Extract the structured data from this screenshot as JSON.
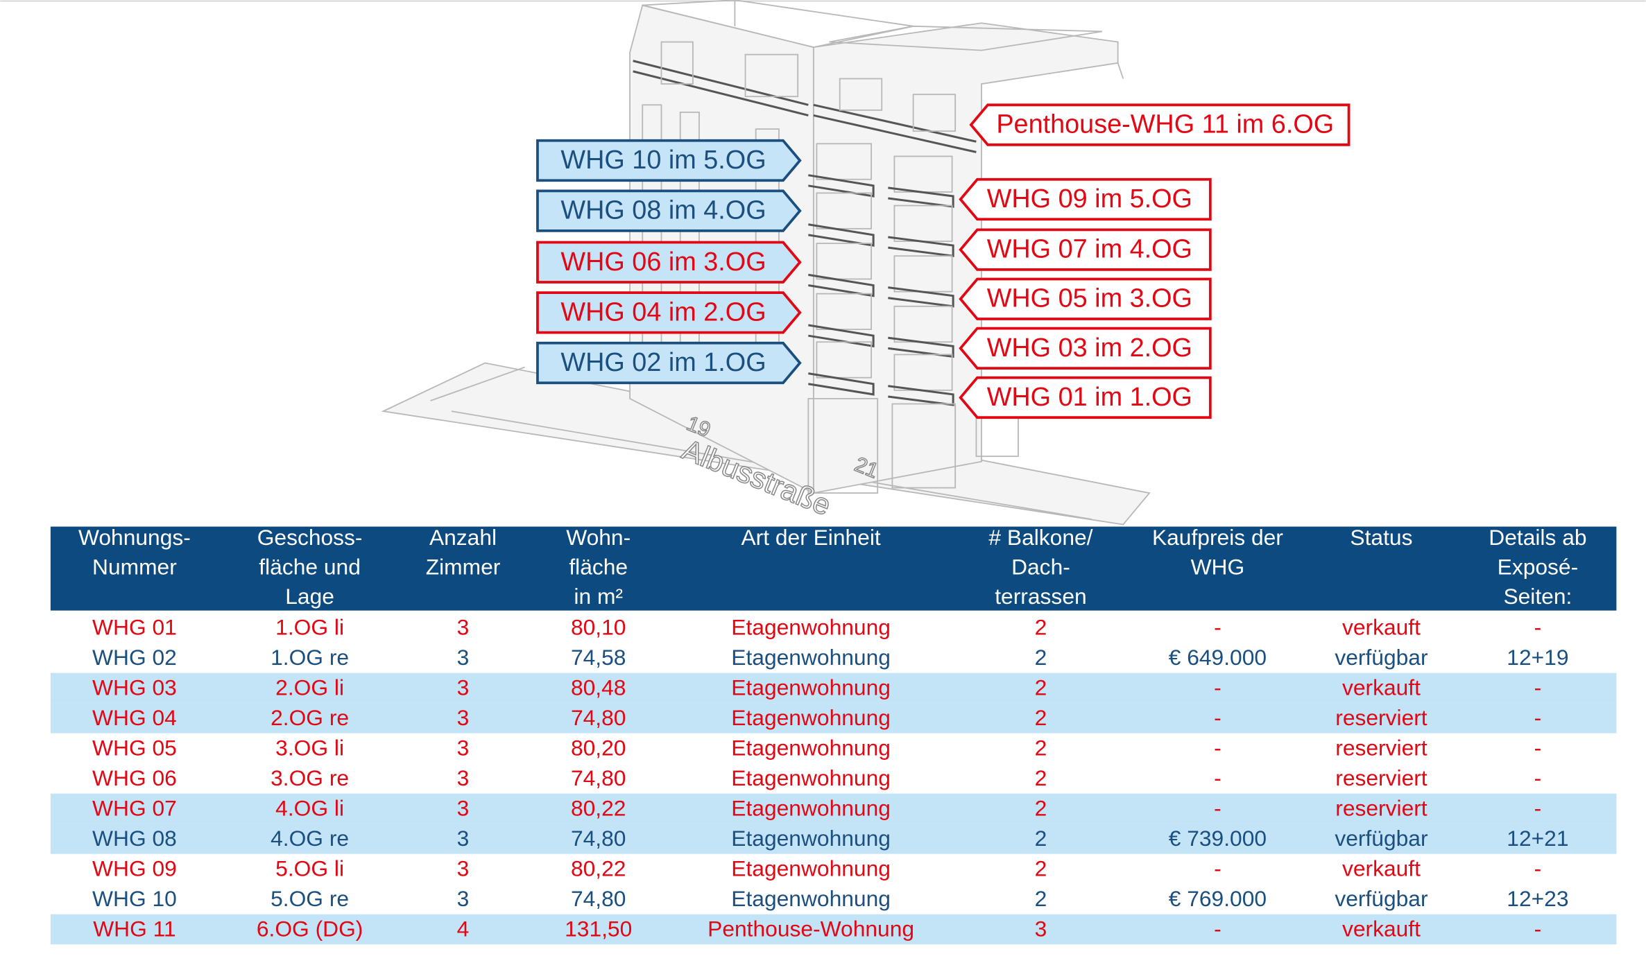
{
  "street": {
    "name": "Albusstraße",
    "numbers": [
      "19",
      "21"
    ]
  },
  "left_callouts": [
    {
      "label": "WHG 10 im 5.OG",
      "color": "#1b4f80",
      "fill": "#c6e4f7"
    },
    {
      "label": "WHG 08 im 4.OG",
      "color": "#1b4f80",
      "fill": "#c6e4f7"
    },
    {
      "label": "WHG 06 im 3.OG",
      "color": "#e30613",
      "fill": "#c6e4f7"
    },
    {
      "label": "WHG 04 im 2.OG",
      "color": "#e30613",
      "fill": "#c6e4f7"
    },
    {
      "label": "WHG 02 im 1.OG",
      "color": "#1b4f80",
      "fill": "#c6e4f7"
    }
  ],
  "penthouse_callout": {
    "label": "Penthouse-WHG 11 im 6.OG",
    "color": "#e30613",
    "fill": "#ffffff"
  },
  "right_callouts": [
    {
      "label": "WHG 09 im 5.OG",
      "color": "#e30613",
      "fill": "#ffffff"
    },
    {
      "label": "WHG 07 im 4.OG",
      "color": "#e30613",
      "fill": "#ffffff"
    },
    {
      "label": "WHG 05 im 3.OG",
      "color": "#e30613",
      "fill": "#ffffff"
    },
    {
      "label": "WHG 03 im 2.OG",
      "color": "#e30613",
      "fill": "#ffffff"
    },
    {
      "label": "WHG 01 im 1.OG",
      "color": "#e30613",
      "fill": "#ffffff"
    }
  ],
  "table": {
    "header": [
      [
        "Wohnungs-",
        "Nummer"
      ],
      [
        "Geschoss-",
        "fläche und",
        "Lage"
      ],
      [
        "Anzahl",
        "Zimmer"
      ],
      [
        "Wohn-",
        "fläche",
        "in m²"
      ],
      [
        "Art der Einheit"
      ],
      [
        "# Balkone/",
        "Dach-",
        "terrassen"
      ],
      [
        "Kaufpreis der",
        "WHG"
      ],
      [
        "Status"
      ],
      [
        "Details ab",
        "Exposé-",
        "Seiten:"
      ]
    ],
    "rows": [
      {
        "cells": [
          "WHG 01",
          "1.OG li",
          "3",
          "80,10",
          "Etagenwohnung",
          "2",
          "-",
          "verkauft",
          "-"
        ],
        "color": "#e30613",
        "shaded": false
      },
      {
        "cells": [
          "WHG 02",
          "1.OG re",
          "3",
          "74,58",
          "Etagenwohnung",
          "2",
          "€ 649.000",
          "verfügbar",
          "12+19"
        ],
        "color": "#1b4f80",
        "shaded": false
      },
      {
        "cells": [
          "WHG 03",
          "2.OG li",
          "3",
          "80,48",
          "Etagenwohnung",
          "2",
          "-",
          "verkauft",
          "-"
        ],
        "color": "#e30613",
        "shaded": true
      },
      {
        "cells": [
          "WHG 04",
          "2.OG re",
          "3",
          "74,80",
          "Etagenwohnung",
          "2",
          "-",
          "reserviert",
          "-"
        ],
        "color": "#e30613",
        "shaded": true
      },
      {
        "cells": [
          "WHG 05",
          "3.OG li",
          "3",
          "80,20",
          "Etagenwohnung",
          "2",
          "-",
          "reserviert",
          "-"
        ],
        "color": "#e30613",
        "shaded": false
      },
      {
        "cells": [
          "WHG 06",
          "3.OG re",
          "3",
          "74,80",
          "Etagenwohnung",
          "2",
          "-",
          "reserviert",
          "-"
        ],
        "color": "#e30613",
        "shaded": false
      },
      {
        "cells": [
          "WHG 07",
          "4.OG li",
          "3",
          "80,22",
          "Etagenwohnung",
          "2",
          "-",
          "reserviert",
          "-"
        ],
        "color": "#e30613",
        "shaded": true
      },
      {
        "cells": [
          "WHG 08",
          "4.OG re",
          "3",
          "74,80",
          "Etagenwohnung",
          "2",
          "€ 739.000",
          "verfügbar",
          "12+21"
        ],
        "color": "#1b4f80",
        "shaded": true
      },
      {
        "cells": [
          "WHG 09",
          "5.OG li",
          "3",
          "80,22",
          "Etagenwohnung",
          "2",
          "-",
          "verkauft",
          "-"
        ],
        "color": "#e30613",
        "shaded": false
      },
      {
        "cells": [
          "WHG 10",
          "5.OG re",
          "3",
          "74,80",
          "Etagenwohnung",
          "2",
          "€ 769.000",
          "verfügbar",
          "12+23"
        ],
        "color": "#1b4f80",
        "shaded": false
      },
      {
        "cells": [
          "WHG 11",
          "6.OG (DG)",
          "4",
          "131,50",
          "Penthouse-Wohnung",
          "3",
          "-",
          "verkauft",
          "-"
        ],
        "color": "#e30613",
        "shaded": true
      }
    ]
  }
}
